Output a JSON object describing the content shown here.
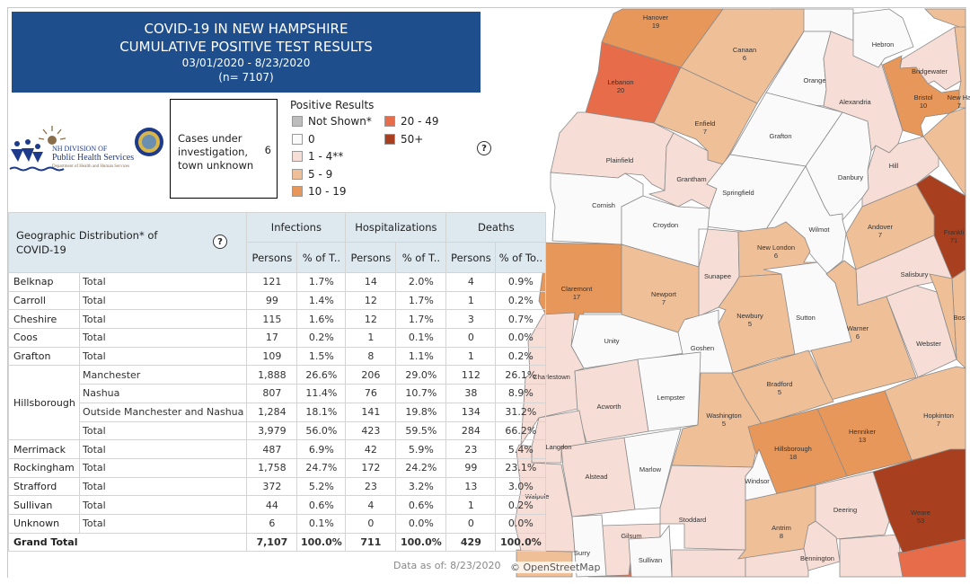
{
  "header": {
    "title_line1": "COVID-19 IN NEW HAMPSHIRE",
    "title_line2": "CUMULATIVE POSITIVE TEST RESULTS",
    "date_range": "03/01/2020 - 8/23/2020",
    "n": "(n= 7107)"
  },
  "logo": {
    "org_line1": "NH DIVISION OF",
    "org_line2": "Public Health Services",
    "org_line3": "Department of Health and Human Services"
  },
  "cases_box": {
    "label": "Cases under investigation, town unknown",
    "value": "6"
  },
  "legend": {
    "title": "Positive Results",
    "items": [
      {
        "label": "Not Shown*",
        "color": "#bdbdbd"
      },
      {
        "label": "0",
        "color": "#fafafa"
      },
      {
        "label": "1 - 4**",
        "color": "#f6ddd6"
      },
      {
        "label": "5 - 9",
        "color": "#efbf98"
      },
      {
        "label": "10 - 19",
        "color": "#e8975a"
      },
      {
        "label": "20 - 49",
        "color": "#e66c4a"
      },
      {
        "label": "50+",
        "color": "#a8401f"
      }
    ]
  },
  "help_icon": "?",
  "table": {
    "title": "Geographic Distribution* of COVID-19",
    "groups": [
      "Infections",
      "Hospitalizations",
      "Deaths"
    ],
    "subheaders": [
      "Persons",
      "% of T..",
      "Persons",
      "% of T..",
      "Persons",
      "% of To.."
    ],
    "rows": [
      {
        "county": "Belknap",
        "sub": "Total",
        "v": [
          "121",
          "1.7%",
          "14",
          "2.0%",
          "4",
          "0.9%"
        ]
      },
      {
        "county": "Carroll",
        "sub": "Total",
        "v": [
          "99",
          "1.4%",
          "12",
          "1.7%",
          "1",
          "0.2%"
        ]
      },
      {
        "county": "Cheshire",
        "sub": "Total",
        "v": [
          "115",
          "1.6%",
          "12",
          "1.7%",
          "3",
          "0.7%"
        ]
      },
      {
        "county": "Coos",
        "sub": "Total",
        "v": [
          "17",
          "0.2%",
          "1",
          "0.1%",
          "0",
          "0.0%"
        ]
      },
      {
        "county": "Grafton",
        "sub": "Total",
        "v": [
          "109",
          "1.5%",
          "8",
          "1.1%",
          "1",
          "0.2%"
        ]
      },
      {
        "county": "Hillsborough",
        "sub": "Manchester",
        "v": [
          "1,888",
          "26.6%",
          "206",
          "29.0%",
          "112",
          "26.1%"
        ]
      },
      {
        "county": "",
        "sub": "Nashua",
        "v": [
          "807",
          "11.4%",
          "76",
          "10.7%",
          "38",
          "8.9%"
        ]
      },
      {
        "county": "",
        "sub": "Outside Manchester and Nashua",
        "v": [
          "1,284",
          "18.1%",
          "141",
          "19.8%",
          "134",
          "31.2%"
        ]
      },
      {
        "county": "",
        "sub": "Total",
        "v": [
          "3,979",
          "56.0%",
          "423",
          "59.5%",
          "284",
          "66.2%"
        ]
      },
      {
        "county": "Merrimack",
        "sub": "Total",
        "v": [
          "487",
          "6.9%",
          "42",
          "5.9%",
          "23",
          "5.4%"
        ]
      },
      {
        "county": "Rockingham",
        "sub": "Total",
        "v": [
          "1,758",
          "24.7%",
          "172",
          "24.2%",
          "99",
          "23.1%"
        ]
      },
      {
        "county": "Strafford",
        "sub": "Total",
        "v": [
          "372",
          "5.2%",
          "23",
          "3.2%",
          "13",
          "3.0%"
        ]
      },
      {
        "county": "Sullivan",
        "sub": "Total",
        "v": [
          "44",
          "0.6%",
          "4",
          "0.6%",
          "1",
          "0.2%"
        ]
      },
      {
        "county": "Unknown",
        "sub": "Total",
        "v": [
          "6",
          "0.1%",
          "0",
          "0.0%",
          "0",
          "0.0%"
        ]
      }
    ],
    "grand_total": {
      "label": "Grand Total",
      "v": [
        "7,107",
        "100.0%",
        "711",
        "100.0%",
        "429",
        "100.0%"
      ]
    }
  },
  "data_as_of": "Data as of:  8/23/2020",
  "map": {
    "attribution": "© OpenStreetMap",
    "towns": [
      {
        "name": "Hanover",
        "count": "19",
        "bin": "10 - 19"
      },
      {
        "name": "Lebanon",
        "count": "20",
        "bin": "20 - 49"
      },
      {
        "name": "Canaan",
        "count": "6",
        "bin": "5 - 9"
      },
      {
        "name": "Enfield",
        "count": "7",
        "bin": "5 - 9"
      },
      {
        "name": "Plainfield",
        "count": "",
        "bin": "1 - 4**"
      },
      {
        "name": "Grantham",
        "count": "",
        "bin": "1 - 4**"
      },
      {
        "name": "Orange",
        "count": "",
        "bin": "0"
      },
      {
        "name": "Grafton",
        "count": "",
        "bin": "0"
      },
      {
        "name": "Springfield",
        "count": "",
        "bin": "0"
      },
      {
        "name": "Alexandria",
        "count": "",
        "bin": "1 - 4**"
      },
      {
        "name": "Hebron",
        "count": "",
        "bin": "0"
      },
      {
        "name": "Bridgewater",
        "count": "",
        "bin": "1 - 4**"
      },
      {
        "name": "Bristol",
        "count": "10",
        "bin": "10 - 19"
      },
      {
        "name": "New Ha",
        "count": "7",
        "bin": "5 - 9"
      },
      {
        "name": "Hill",
        "count": "",
        "bin": "1 - 4**"
      },
      {
        "name": "Danbury",
        "count": "",
        "bin": "0"
      },
      {
        "name": "Wilmot",
        "count": "",
        "bin": "0"
      },
      {
        "name": "Frankli",
        "count": "71",
        "bin": "50+"
      },
      {
        "name": "Andover",
        "count": "7",
        "bin": "5 - 9"
      },
      {
        "name": "Salisbury",
        "count": "",
        "bin": "1 - 4**"
      },
      {
        "name": "Cornish",
        "count": "",
        "bin": "0"
      },
      {
        "name": "Croydon",
        "count": "",
        "bin": "0"
      },
      {
        "name": "Sunapee",
        "count": "",
        "bin": "1 - 4**"
      },
      {
        "name": "New London",
        "count": "6",
        "bin": "5 - 9"
      },
      {
        "name": "Claremont",
        "count": "17",
        "bin": "10 - 19"
      },
      {
        "name": "Newport",
        "count": "7",
        "bin": "5 - 9"
      },
      {
        "name": "Newbury",
        "count": "5",
        "bin": "5 - 9"
      },
      {
        "name": "Sutton",
        "count": "",
        "bin": "0"
      },
      {
        "name": "Warner",
        "count": "6",
        "bin": "5 - 9"
      },
      {
        "name": "Webster",
        "count": "",
        "bin": "1 - 4**"
      },
      {
        "name": "Bos",
        "count": "",
        "bin": "5 - 9"
      },
      {
        "name": "Unity",
        "count": "",
        "bin": "0"
      },
      {
        "name": "Goshen",
        "count": "",
        "bin": "0"
      },
      {
        "name": "Charlestown",
        "count": "",
        "bin": "1 - 4**"
      },
      {
        "name": "Acworth",
        "count": "",
        "bin": "1 - 4**"
      },
      {
        "name": "Lempster",
        "count": "",
        "bin": "0"
      },
      {
        "name": "Washington",
        "count": "5",
        "bin": "5 - 9"
      },
      {
        "name": "Bradford",
        "count": "5",
        "bin": "5 - 9"
      },
      {
        "name": "Hopkinton",
        "count": "7",
        "bin": "5 - 9"
      },
      {
        "name": "Henniker",
        "count": "13",
        "bin": "10 - 19"
      },
      {
        "name": "Hillsborough",
        "count": "18",
        "bin": "10 - 19"
      },
      {
        "name": "Weare",
        "count": "53",
        "bin": "50+"
      },
      {
        "name": "Langdon",
        "count": "",
        "bin": "1 - 4**"
      },
      {
        "name": "Alstead",
        "count": "",
        "bin": "1 - 4**"
      },
      {
        "name": "Marlow",
        "count": "",
        "bin": "0"
      },
      {
        "name": "Walpole",
        "count": "",
        "bin": "1 - 4**"
      },
      {
        "name": "Stoddard",
        "count": "",
        "bin": "1 - 4**"
      },
      {
        "name": "Windsor",
        "count": "",
        "bin": "0"
      },
      {
        "name": "Antrim",
        "count": "8",
        "bin": "5 - 9"
      },
      {
        "name": "Deering",
        "count": "",
        "bin": "1 - 4**"
      },
      {
        "name": "Bennington",
        "count": "",
        "bin": "1 - 4**"
      },
      {
        "name": "Gilsum",
        "count": "",
        "bin": "1 - 4**"
      },
      {
        "name": "Sullivan",
        "count": "",
        "bin": "0"
      },
      {
        "name": "Surry",
        "count": "",
        "bin": "0"
      }
    ]
  }
}
